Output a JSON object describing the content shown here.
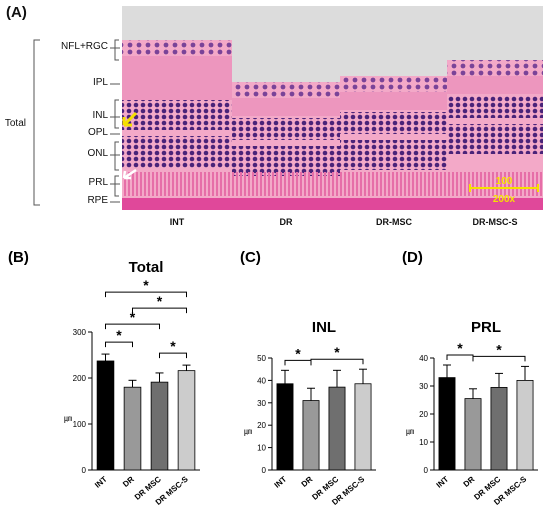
{
  "panel_a": {
    "label": "(A)",
    "layers": [
      "NFL+RGC",
      "IPL",
      "INL",
      "OPL",
      "ONL",
      "PRL",
      "RPE"
    ],
    "total_label": "Total",
    "groups": [
      "INT",
      "DR",
      "DR-MSC",
      "DR-MSC-S"
    ],
    "scale_bar": "100",
    "magnification": "200x",
    "colors": {
      "ink": "#e0489a",
      "pink": "#f3a9c8",
      "purple": "#5a2a8a",
      "bg": "#dcdcdc",
      "arrow": "#f5e000"
    }
  },
  "chart_data": [
    {
      "label": "(B)",
      "type": "bar",
      "title": "Total",
      "categories": [
        "INT",
        "DR",
        "DR MSC",
        "DR MSC-S"
      ],
      "values": [
        237,
        180,
        191,
        216
      ],
      "errors": [
        15,
        15,
        20,
        12
      ],
      "ylabel": "㎛",
      "ylim": [
        0,
        300
      ],
      "yticks": [
        0,
        100,
        200,
        300
      ],
      "colors": [
        "#000000",
        "#999999",
        "#6f6f6f",
        "#cccccc"
      ],
      "significance": [
        "*",
        "*",
        "*",
        "*",
        "*"
      ]
    },
    {
      "label": "(C)",
      "type": "bar",
      "title": "INL",
      "categories": [
        "INT",
        "DR",
        "DR MSC",
        "DR MSC-S"
      ],
      "values": [
        38.5,
        31,
        37,
        38.5
      ],
      "errors": [
        6,
        5.5,
        7.5,
        6.5
      ],
      "ylabel": "㎛",
      "ylim": [
        0,
        50
      ],
      "yticks": [
        0,
        10,
        20,
        30,
        40,
        50
      ],
      "colors": [
        "#000000",
        "#999999",
        "#6f6f6f",
        "#cccccc"
      ],
      "significance": [
        "*",
        "*"
      ]
    },
    {
      "label": "(D)",
      "type": "bar",
      "title": "PRL",
      "categories": [
        "INT",
        "DR",
        "DR MSC",
        "DR MSC-S"
      ],
      "values": [
        33,
        25.5,
        29.5,
        32
      ],
      "errors": [
        4.5,
        3.5,
        5,
        5
      ],
      "ylabel": "㎛",
      "ylim": [
        0,
        40
      ],
      "yticks": [
        0,
        10,
        20,
        30,
        40
      ],
      "colors": [
        "#000000",
        "#999999",
        "#6f6f6f",
        "#cccccc"
      ],
      "significance": [
        "*",
        "*"
      ]
    }
  ]
}
